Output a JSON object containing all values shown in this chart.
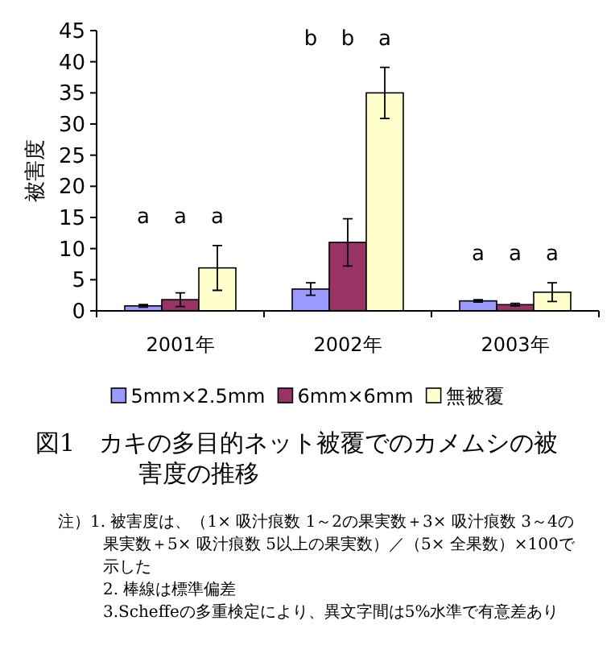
{
  "chart_data": {
    "type": "bar",
    "ylabel": "被害度",
    "title": "図1　カキの多目的ネット被覆でのカメムシの被害度の推移",
    "categories": [
      "2001年",
      "2002年",
      "2003年"
    ],
    "series": [
      {
        "name": "5mm×2.5mm",
        "color": "#9999ff",
        "values": [
          0.8,
          3.5,
          1.6
        ],
        "errors": [
          0.2,
          1.0,
          0.2
        ]
      },
      {
        "name": "6mm×6mm",
        "color": "#993366",
        "values": [
          1.8,
          11.0,
          1.0
        ],
        "errors": [
          1.1,
          3.8,
          0.2
        ]
      },
      {
        "name": "無被覆",
        "color": "#ffffcc",
        "values": [
          6.9,
          35.0,
          3.0
        ],
        "errors": [
          3.6,
          4.1,
          1.5
        ]
      }
    ],
    "ylim": [
      0,
      45
    ],
    "yticks": [
      0,
      5,
      10,
      15,
      20,
      25,
      30,
      35,
      40,
      45
    ],
    "legend": "bottom",
    "grid": false,
    "annotations": [
      "a",
      "a",
      "a",
      "b",
      "b",
      "a",
      "a",
      "a",
      "a",
      "注）1. 被害度は、（1× 吸汁痕数 1～2の果実数＋3× 吸汁痕数 3～4の果実数＋5× 吸汁痕数 5以上の果実数）／（5× 全果数）×100で示した",
      "2. 棒線は標準偏差",
      "3.Scheffeの多重検定により、異文字間は5%水準で有意差あり"
    ]
  }
}
